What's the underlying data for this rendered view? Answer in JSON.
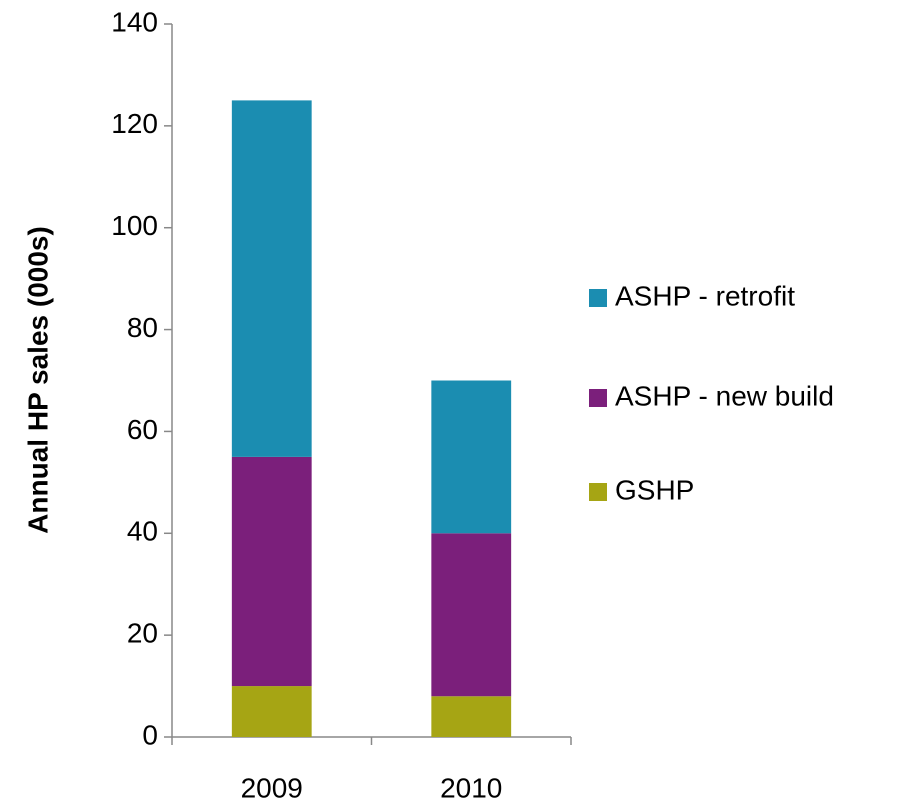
{
  "chart_data": {
    "type": "stacked_bar",
    "y_label": "Annual HP sales (000s)",
    "categories": [
      "2009",
      "2010"
    ],
    "series": [
      {
        "name": "GSHP",
        "color": "#a6a514",
        "values": [
          10,
          8
        ]
      },
      {
        "name": "ASHP - new build",
        "color": "#7b1f7b",
        "values": [
          45,
          32
        ]
      },
      {
        "name": "ASHP - retrofit",
        "color": "#1b8db1",
        "values": [
          70,
          30
        ]
      }
    ],
    "ylim": [
      0,
      140
    ],
    "yticks": [
      0,
      20,
      40,
      60,
      80,
      100,
      120,
      140
    ],
    "legend": "right"
  }
}
